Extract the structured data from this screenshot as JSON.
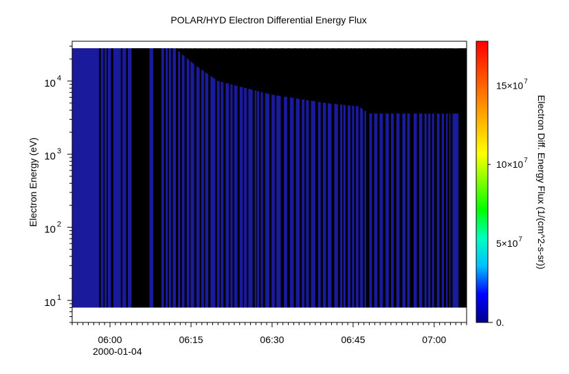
{
  "chart_data": {
    "type": "heatmap",
    "title": "POLAR/HYD  Electron Differential Energy Flux",
    "ylabel": "Electron Energy (eV)",
    "y_scale": "log",
    "ylim": [
      5,
      35000
    ],
    "y_ticks": [
      {
        "value": 10,
        "base": "10",
        "exp": "1"
      },
      {
        "value": 100,
        "base": "10",
        "exp": "2"
      },
      {
        "value": 1000,
        "base": "10",
        "exp": "3"
      },
      {
        "value": 10000,
        "base": "10",
        "exp": "4"
      }
    ],
    "x_time_range_minutes": [
      "05:53",
      "07:06"
    ],
    "x_ticks": [
      {
        "time": "06:00",
        "label": "06:00"
      },
      {
        "time": "06:15",
        "label": "06:15"
      },
      {
        "time": "06:30",
        "label": "06:30"
      },
      {
        "time": "06:45",
        "label": "06:45"
      },
      {
        "time": "07:00",
        "label": "07:00"
      }
    ],
    "x_date_label": "2000-01-04",
    "colorbar": {
      "label": "Electron Diff. Energy Flux (1/(cm^2-s-sr))",
      "range": [
        0,
        17800000
      ],
      "ticks": [
        {
          "value": 0,
          "base": "0.",
          "exp": ""
        },
        {
          "value": 50000000,
          "base": "5×10",
          "exp": "7"
        },
        {
          "value": 100000000,
          "base": "10×10",
          "exp": "7"
        },
        {
          "value": 150000000,
          "base": "15×10",
          "exp": "7"
        }
      ],
      "colors": [
        "#00008b",
        "#0000ff",
        "#00bfff",
        "#00ffbf",
        "#00ff00",
        "#7fff00",
        "#ffff00",
        "#ffbf00",
        "#ff7f00",
        "#ff3f00",
        "#ff0000"
      ]
    },
    "data_energy_range_ev": [
      8,
      28000
    ],
    "data_color": "#1a1a9c",
    "gap_color": "#000000",
    "data_upper_energy_profile": [
      {
        "time": "05:53",
        "ev": 28000
      },
      {
        "time": "06:12",
        "ev": 28000
      },
      {
        "time": "06:16",
        "ev": 16000
      },
      {
        "time": "06:20",
        "ev": 10000
      },
      {
        "time": "06:30",
        "ev": 6500
      },
      {
        "time": "06:40",
        "ev": 5000
      },
      {
        "time": "06:46",
        "ev": 4500
      },
      {
        "time": "06:48",
        "ev": 3600
      },
      {
        "time": "07:06",
        "ev": 3600
      }
    ],
    "black_bands_minutes": [
      [
        5.0,
        5.3
      ],
      [
        5.8,
        6.0
      ],
      [
        6.4,
        6.6
      ],
      [
        7.2,
        7.6
      ],
      [
        9.0,
        9.3
      ],
      [
        10.0,
        10.3
      ],
      [
        11.0,
        14.3
      ],
      [
        15.0,
        16.5
      ],
      [
        17.0,
        17.3
      ],
      [
        17.7,
        17.9
      ],
      [
        18.3,
        18.6
      ],
      [
        19.2,
        19.6
      ],
      [
        20.0,
        20.3
      ],
      [
        20.8,
        21.2
      ],
      [
        21.7,
        21.9
      ],
      [
        22.6,
        23.0
      ],
      [
        23.6,
        23.9
      ],
      [
        24.4,
        24.6
      ],
      [
        25.2,
        25.6
      ],
      [
        26.5,
        26.8
      ],
      [
        27.3,
        27.5
      ],
      [
        28.0,
        28.4
      ],
      [
        29.0,
        29.3
      ],
      [
        29.7,
        30.0
      ],
      [
        30.6,
        31.0
      ],
      [
        31.6,
        31.8
      ],
      [
        32.3,
        32.6
      ],
      [
        33.4,
        33.8
      ],
      [
        34.1,
        34.2
      ],
      [
        34.6,
        34.9
      ],
      [
        35.3,
        35.7
      ],
      [
        36.5,
        36.9
      ],
      [
        37.5,
        37.8
      ],
      [
        38.6,
        39.2
      ],
      [
        39.8,
        40.3
      ],
      [
        41.0,
        41.4
      ],
      [
        42.1,
        42.5
      ],
      [
        43.0,
        43.3
      ],
      [
        43.8,
        44.2
      ],
      [
        45.0,
        45.5
      ],
      [
        46.0,
        46.4
      ],
      [
        47.0,
        47.3
      ],
      [
        48.0,
        48.5
      ],
      [
        49.2,
        49.6
      ],
      [
        50.0,
        50.2
      ],
      [
        50.6,
        51.0
      ],
      [
        51.5,
        51.8
      ],
      [
        52.2,
        52.5
      ],
      [
        53.0,
        53.3
      ],
      [
        53.8,
        54.1
      ],
      [
        54.4,
        55.0
      ],
      [
        55.5,
        55.9
      ],
      [
        56.5,
        56.9
      ],
      [
        57.5,
        58.0
      ],
      [
        58.6,
        59.0
      ],
      [
        59.5,
        60.0
      ],
      [
        60.6,
        61.1
      ],
      [
        61.7,
        62.0
      ],
      [
        62.5,
        63.2
      ],
      [
        63.8,
        64.2
      ],
      [
        64.8,
        65.2
      ],
      [
        65.6,
        65.9
      ],
      [
        66.3,
        66.6
      ],
      [
        67.0,
        67.5
      ],
      [
        68.0,
        68.4
      ],
      [
        68.8,
        69.2
      ],
      [
        69.5,
        69.8
      ],
      [
        70.0,
        70.4
      ],
      [
        71.5,
        73.0
      ]
    ]
  }
}
